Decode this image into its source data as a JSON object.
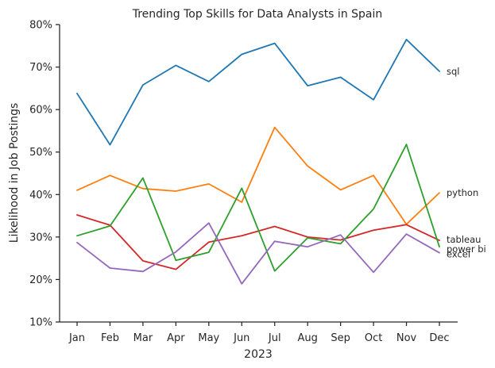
{
  "chart_data": {
    "type": "line",
    "title": "Trending Top Skills for Data Analysts in Spain",
    "xlabel": "2023",
    "ylabel": "Likelihood in Job Postings",
    "categories": [
      "Jan",
      "Feb",
      "Mar",
      "Apr",
      "May",
      "Jun",
      "Jul",
      "Aug",
      "Sep",
      "Oct",
      "Nov",
      "Dec"
    ],
    "ylim": [
      10,
      80
    ],
    "yticks": [
      {
        "value": 10,
        "label": "10%"
      },
      {
        "value": 20,
        "label": "20%"
      },
      {
        "value": 30,
        "label": "30%"
      },
      {
        "value": 40,
        "label": "40%"
      },
      {
        "value": 50,
        "label": "50%"
      },
      {
        "value": 60,
        "label": "60%"
      },
      {
        "value": 70,
        "label": "70%"
      },
      {
        "value": 80,
        "label": "80%"
      }
    ],
    "grid": false,
    "legend": "none",
    "series": [
      {
        "name": "sql",
        "color": "#1f77b4",
        "values": [
          63.8,
          51.7,
          65.8,
          70.4,
          66.6,
          73.0,
          75.6,
          65.6,
          67.6,
          62.3,
          76.5,
          69.0
        ]
      },
      {
        "name": "python",
        "color": "#ff7f0e",
        "values": [
          41.0,
          44.5,
          41.4,
          40.8,
          42.5,
          38.2,
          55.8,
          46.7,
          41.1,
          44.5,
          33.0,
          40.4
        ]
      },
      {
        "name": "tableau",
        "color": "#d62728",
        "values": [
          35.2,
          32.8,
          24.4,
          22.4,
          28.8,
          30.3,
          32.5,
          30.0,
          29.3,
          31.6,
          32.9,
          29.2
        ]
      },
      {
        "name": "power bi",
        "color": "#2ca02c",
        "values": [
          30.3,
          32.6,
          43.9,
          24.5,
          26.4,
          41.5,
          22.0,
          29.8,
          28.4,
          36.6,
          51.8,
          27.7
        ]
      },
      {
        "name": "excel",
        "color": "#9467bd",
        "values": [
          28.7,
          22.7,
          21.9,
          26.5,
          33.3,
          19.0,
          29.0,
          27.7,
          30.5,
          21.7,
          30.7,
          26.3
        ]
      }
    ]
  }
}
